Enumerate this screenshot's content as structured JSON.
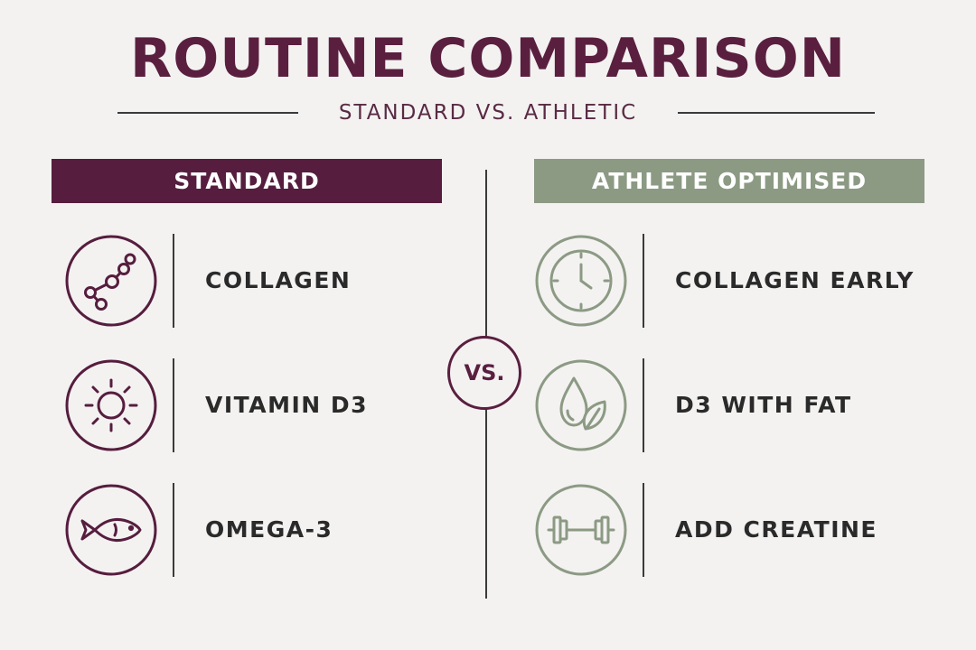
{
  "title": "ROUTINE COMPARISON",
  "subtitle": "STANDARD VS. ATHLETIC",
  "vs_label": "VS.",
  "colors": {
    "primary": "#561d3e",
    "secondary": "#8c9a84",
    "text": "#2a2a2a",
    "background": "#f3f2f1"
  },
  "standard": {
    "header": "STANDARD",
    "items": [
      {
        "label": "COLLAGEN",
        "icon": "molecule-icon"
      },
      {
        "label": "VITAMIN D3",
        "icon": "sun-icon"
      },
      {
        "label": "OMEGA-3",
        "icon": "fish-icon"
      }
    ]
  },
  "athletic": {
    "header": "ATHLETE OPTIMISED",
    "items": [
      {
        "label": "COLLAGEN EARLY",
        "icon": "clock-icon"
      },
      {
        "label": "D3 WITH FAT",
        "icon": "drop-leaf-icon"
      },
      {
        "label": "ADD CREATINE",
        "icon": "dumbbell-icon"
      }
    ]
  }
}
